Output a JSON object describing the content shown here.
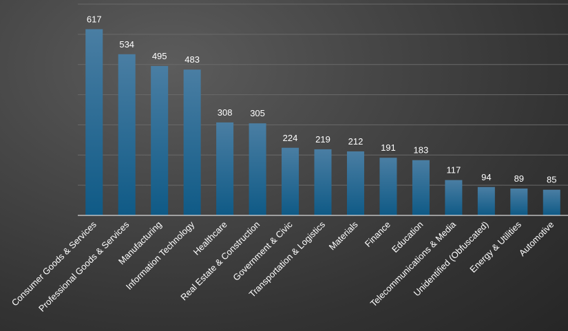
{
  "chart_data": {
    "type": "bar",
    "title": "",
    "xlabel": "",
    "ylabel": "",
    "categories": [
      "Consumer Goods & Services",
      "Professional Goods & Services",
      "Manufacturing",
      "Information Technology",
      "Healthcare",
      "Real Estate & Construction",
      "Government & Civic",
      "Transportation & Logistics",
      "Materials",
      "Finance",
      "Education",
      "Telecommunications & Media",
      "Unidentified (Obfuscated)",
      "Energy & Utilities",
      "Automotive"
    ],
    "values": [
      617,
      534,
      495,
      483,
      308,
      305,
      224,
      219,
      212,
      191,
      183,
      117,
      94,
      89,
      85
    ],
    "ylim": [
      0,
      700
    ],
    "grid": true,
    "data_labels": true,
    "bar_color_top": "#4a7ea3",
    "bar_color_bottom": "#0f5a86",
    "background_color": "#3a3a3a"
  }
}
